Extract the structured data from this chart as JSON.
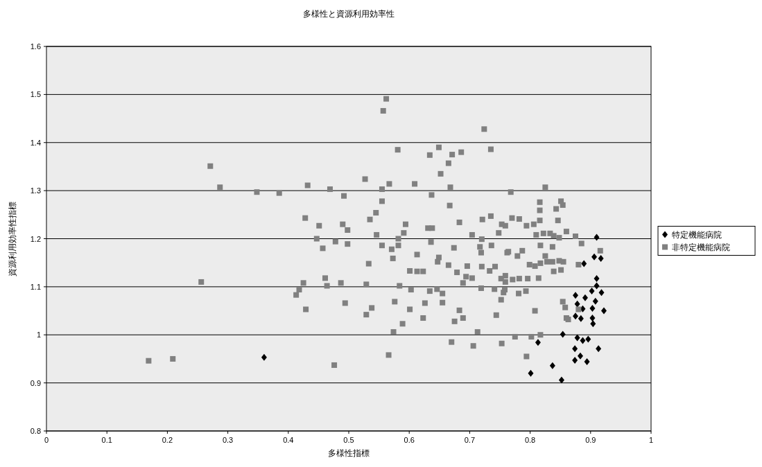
{
  "chart_data": {
    "type": "scatter",
    "title": "多様性と資源利用効率性",
    "xlabel": "多様性指標",
    "ylabel": "資源利用効率性指標",
    "xlim": [
      0,
      1
    ],
    "xticks": [
      0,
      0.1,
      0.2,
      0.3,
      0.4,
      0.5,
      0.6,
      0.7,
      0.8,
      0.9,
      1
    ],
    "ylim": [
      0.8,
      1.6
    ],
    "yticks": [
      0.8,
      0.9,
      1,
      1.1,
      1.2,
      1.3,
      1.4,
      1.5,
      1.6
    ],
    "grid": "y",
    "legend": "right",
    "series": [
      {
        "name": "特定機能病院",
        "color": "#000000",
        "marker": "diamond",
        "x": [
          0.36,
          0.91,
          0.906,
          0.917,
          0.889,
          0.91,
          0.91,
          0.902,
          0.918,
          0.875,
          0.891,
          0.908,
          0.878,
          0.887,
          0.903,
          0.922,
          0.875,
          0.884,
          0.903,
          0.904,
          0.854,
          0.878,
          0.887,
          0.896,
          0.913,
          0.813,
          0.874,
          0.883,
          0.874,
          0.894,
          0.837,
          0.801,
          0.852
        ],
        "values": [
          0.953,
          1.203,
          1.162,
          1.159,
          1.148,
          1.117,
          1.102,
          1.091,
          1.088,
          1.082,
          1.077,
          1.07,
          1.064,
          1.054,
          1.055,
          1.05,
          1.039,
          1.034,
          1.035,
          1.023,
          1.001,
          0.994,
          0.988,
          0.991,
          0.971,
          0.984,
          0.971,
          0.956,
          0.947,
          0.944,
          0.936,
          0.92,
          0.906
        ]
      },
      {
        "name": "非特定機能病院",
        "color": "#808080",
        "marker": "square",
        "x": [
          0.169,
          0.209,
          0.476,
          0.271,
          0.287,
          0.348,
          0.385,
          0.432,
          0.469,
          0.492,
          0.428,
          0.451,
          0.49,
          0.498,
          0.447,
          0.478,
          0.498,
          0.457,
          0.256,
          0.425,
          0.418,
          0.413,
          0.461,
          0.464,
          0.487,
          0.494,
          0.429,
          0.562,
          0.557,
          0.724,
          0.581,
          0.649,
          0.634,
          0.671,
          0.686,
          0.735,
          0.665,
          0.652,
          0.527,
          0.567,
          0.609,
          0.555,
          0.668,
          0.637,
          0.667,
          0.555,
          0.545,
          0.535,
          0.594,
          0.631,
          0.638,
          0.683,
          0.721,
          0.735,
          0.753,
          0.748,
          0.546,
          0.591,
          0.582,
          0.636,
          0.704,
          0.72,
          0.555,
          0.571,
          0.582,
          0.674,
          0.717,
          0.736,
          0.764,
          0.719,
          0.613,
          0.649,
          0.573,
          0.533,
          0.647,
          0.665,
          0.696,
          0.72,
          0.742,
          0.733,
          0.601,
          0.613,
          0.623,
          0.679,
          0.694,
          0.704,
          0.689,
          0.752,
          0.759,
          0.529,
          0.584,
          0.603,
          0.634,
          0.646,
          0.655,
          0.719,
          0.741,
          0.756,
          0.752,
          0.576,
          0.626,
          0.655,
          0.538,
          0.601,
          0.683,
          0.529,
          0.623,
          0.744,
          0.689,
          0.675,
          0.589,
          0.574,
          0.713,
          0.67,
          0.706,
          0.753,
          0.566,
          0.825,
          0.768,
          0.816,
          0.816,
          0.851,
          0.854,
          0.843,
          0.77,
          0.782,
          0.759,
          0.794,
          0.806,
          0.816,
          0.846,
          0.86,
          0.81,
          0.822,
          0.833,
          0.839,
          0.848,
          0.875,
          0.885,
          0.817,
          0.837,
          0.762,
          0.787,
          0.779,
          0.825,
          0.837,
          0.848,
          0.855,
          0.916,
          0.799,
          0.808,
          0.817,
          0.828,
          0.88,
          0.839,
          0.851,
          0.759,
          0.771,
          0.782,
          0.796,
          0.814,
          0.758,
          0.781,
          0.793,
          0.854,
          0.858,
          0.88,
          0.808,
          0.86,
          0.863,
          0.775,
          0.802,
          0.817,
          0.794
        ],
        "values": [
          0.946,
          0.95,
          0.937,
          1.351,
          1.307,
          1.297,
          1.295,
          1.311,
          1.303,
          1.289,
          1.243,
          1.227,
          1.23,
          1.218,
          1.2,
          1.194,
          1.189,
          1.18,
          1.11,
          1.108,
          1.094,
          1.083,
          1.118,
          1.102,
          1.108,
          1.066,
          1.053,
          1.491,
          1.466,
          1.428,
          1.385,
          1.39,
          1.374,
          1.375,
          1.38,
          1.386,
          1.357,
          1.335,
          1.324,
          1.314,
          1.314,
          1.303,
          1.307,
          1.291,
          1.269,
          1.278,
          1.254,
          1.24,
          1.23,
          1.222,
          1.222,
          1.234,
          1.24,
          1.247,
          1.23,
          1.212,
          1.208,
          1.212,
          1.2,
          1.193,
          1.208,
          1.199,
          1.186,
          1.178,
          1.186,
          1.181,
          1.183,
          1.186,
          1.173,
          1.171,
          1.167,
          1.161,
          1.159,
          1.148,
          1.152,
          1.145,
          1.143,
          1.142,
          1.142,
          1.133,
          1.133,
          1.132,
          1.132,
          1.13,
          1.121,
          1.118,
          1.108,
          1.117,
          1.11,
          1.105,
          1.102,
          1.094,
          1.091,
          1.095,
          1.086,
          1.097,
          1.095,
          1.088,
          1.073,
          1.069,
          1.066,
          1.067,
          1.056,
          1.053,
          1.051,
          1.042,
          1.035,
          1.041,
          1.035,
          1.028,
          1.023,
          1.006,
          1.006,
          0.985,
          0.977,
          0.982,
          0.958,
          1.307,
          1.297,
          1.276,
          1.259,
          1.278,
          1.27,
          1.262,
          1.243,
          1.241,
          1.227,
          1.227,
          1.23,
          1.238,
          1.238,
          1.215,
          1.208,
          1.211,
          1.211,
          1.206,
          1.202,
          1.205,
          1.19,
          1.186,
          1.183,
          1.171,
          1.175,
          1.164,
          1.164,
          1.152,
          1.154,
          1.152,
          1.175,
          1.146,
          1.143,
          1.149,
          1.152,
          1.146,
          1.132,
          1.135,
          1.123,
          1.115,
          1.117,
          1.117,
          1.118,
          1.094,
          1.086,
          1.091,
          1.069,
          1.057,
          1.053,
          1.05,
          1.035,
          1.032,
          0.996,
          0.996,
          1.0,
          0.955
        ]
      }
    ]
  }
}
